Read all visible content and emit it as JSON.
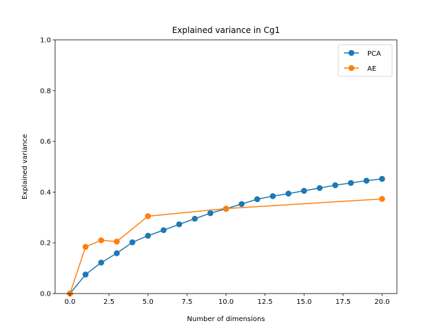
{
  "chart_data": {
    "type": "line",
    "title": "Explained variance in Cg1",
    "xlabel": "Number of dimensions",
    "ylabel": "Explained variance",
    "xlim": [
      -0.95,
      20.95
    ],
    "ylim": [
      0,
      1.0
    ],
    "xticks": [
      0.0,
      2.5,
      5.0,
      7.5,
      10.0,
      12.5,
      15.0,
      17.5,
      20.0
    ],
    "xtick_labels": [
      "0.0",
      "2.5",
      "5.0",
      "7.5",
      "10.0",
      "12.5",
      "15.0",
      "17.5",
      "20.0"
    ],
    "yticks": [
      0.0,
      0.2,
      0.4,
      0.6,
      0.8,
      1.0
    ],
    "ytick_labels": [
      "0.0",
      "0.2",
      "0.4",
      "0.6",
      "0.8",
      "1.0"
    ],
    "grid": false,
    "legend_position": "top-right",
    "series": [
      {
        "name": "PCA",
        "color": "#1f77b4",
        "marker": "circle",
        "x": [
          0,
          1,
          2,
          3,
          4,
          5,
          6,
          7,
          8,
          9,
          10,
          11,
          12,
          13,
          14,
          15,
          16,
          17,
          18,
          19,
          20
        ],
        "y": [
          0.0,
          0.075,
          0.122,
          0.159,
          0.202,
          0.228,
          0.25,
          0.273,
          0.295,
          0.317,
          0.334,
          0.353,
          0.372,
          0.384,
          0.394,
          0.405,
          0.416,
          0.427,
          0.436,
          0.445,
          0.452
        ]
      },
      {
        "name": "AE",
        "color": "#ff7f0e",
        "marker": "circle",
        "x": [
          0,
          1,
          2,
          3,
          5,
          10,
          20
        ],
        "y": [
          0.0,
          0.184,
          0.21,
          0.205,
          0.305,
          0.335,
          0.373
        ]
      }
    ]
  }
}
